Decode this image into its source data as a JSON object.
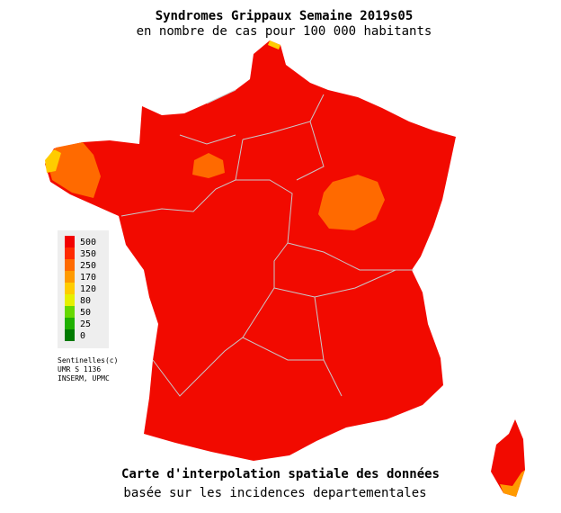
{
  "header": {
    "title": "Syndromes Grippaux Semaine 2019s05",
    "subtitle": "en nombre de cas pour 100 000 habitants"
  },
  "legend": [
    {
      "value": 500,
      "color": "#f20000"
    },
    {
      "value": 350,
      "color": "#ff2a00"
    },
    {
      "value": 250,
      "color": "#ff6a00"
    },
    {
      "value": 170,
      "color": "#ff9a00"
    },
    {
      "value": 120,
      "color": "#ffcc00"
    },
    {
      "value": 80,
      "color": "#e6f000"
    },
    {
      "value": 50,
      "color": "#66d800"
    },
    {
      "value": 25,
      "color": "#1fb000"
    },
    {
      "value": 0,
      "color": "#007a00"
    }
  ],
  "credits": [
    "Sentinelles(c)",
    "UMR S 1136",
    "INSERM, UPMC"
  ],
  "footer": {
    "title": "Carte d'interpolation spatiale des données",
    "subtitle": "basée sur les incidences departementales"
  }
}
